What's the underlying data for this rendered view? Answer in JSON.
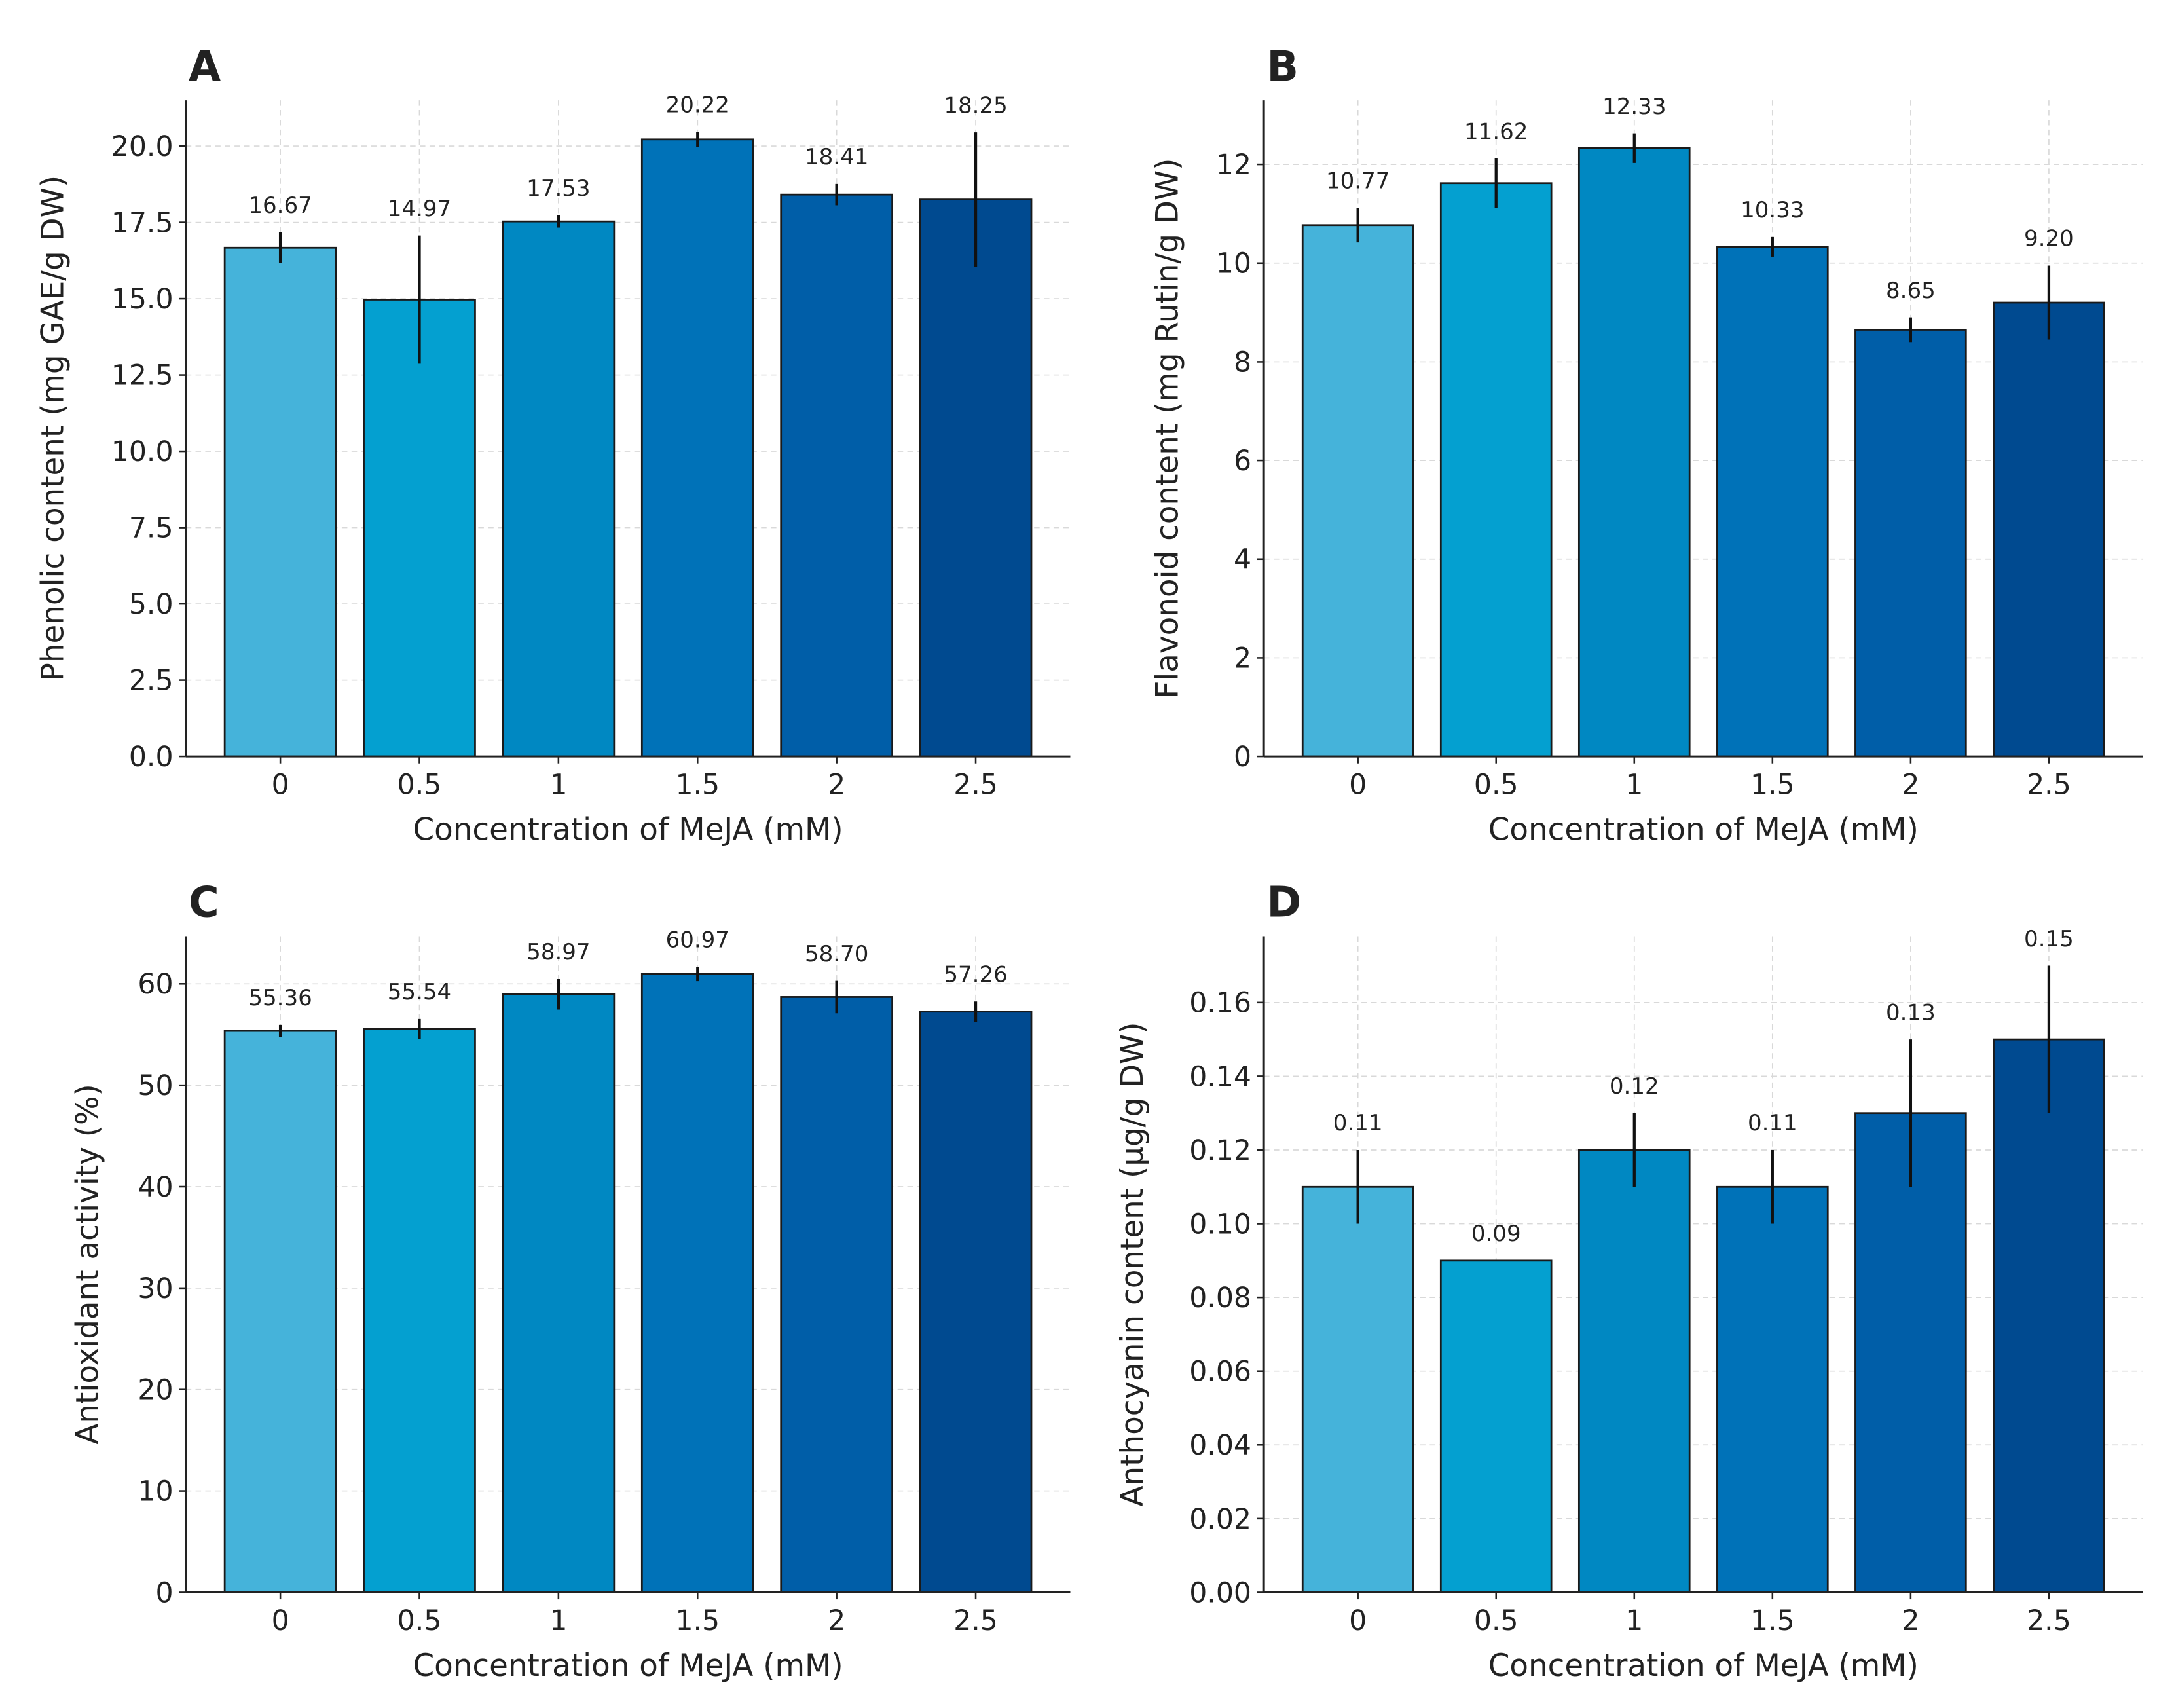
{
  "chart_data": [
    {
      "type": "bar",
      "panel": "A",
      "xlabel": "Concentration of MeJA (mM)",
      "ylabel": "Phenolic content (mg GAE/g DW)",
      "categories": [
        "0",
        "0.5",
        "1",
        "1.5",
        "2",
        "2.5"
      ],
      "values": [
        16.67,
        14.97,
        17.53,
        20.22,
        18.41,
        18.25
      ],
      "value_labels": [
        "16.67",
        "14.97",
        "17.53",
        "20.22",
        "18.41",
        "18.25"
      ],
      "errors": [
        0.5,
        2.1,
        0.2,
        0.25,
        0.35,
        2.2
      ],
      "colors": [
        "#45b3da",
        "#04a0d0",
        "#0088c2",
        "#0072b8",
        "#005ea8",
        "#004a90"
      ],
      "ylim": [
        0,
        21.5
      ],
      "yticks": [
        {
          "value": 0,
          "label": "0.0"
        },
        2.5,
        {
          "value": 5,
          "label": "5.0"
        },
        7.5,
        {
          "value": 10,
          "label": "10.0"
        },
        12.5,
        {
          "value": 15,
          "label": "15.0"
        },
        17.5,
        {
          "value": 20,
          "label": "20.0"
        }
      ],
      "grid": true
    },
    {
      "type": "bar",
      "panel": "B",
      "xlabel": "Concentration of MeJA (mM)",
      "ylabel": "Flavonoid content (mg Rutin/g DW)",
      "categories": [
        "0",
        "0.5",
        "1",
        "1.5",
        "2",
        "2.5"
      ],
      "values": [
        10.77,
        11.62,
        12.33,
        10.33,
        8.65,
        9.2
      ],
      "value_labels": [
        "10.77",
        "11.62",
        "12.33",
        "10.33",
        "8.65",
        "9.20"
      ],
      "errors": [
        0.35,
        0.5,
        0.3,
        0.2,
        0.25,
        0.75
      ],
      "colors": [
        "#45b3da",
        "#04a0d0",
        "#0088c2",
        "#0072b8",
        "#005ea8",
        "#004a90"
      ],
      "ylim": [
        0,
        13.3
      ],
      "yticks": [
        0,
        2,
        4,
        6,
        8,
        10,
        12
      ],
      "grid": true
    },
    {
      "type": "bar",
      "panel": "C",
      "xlabel": "Concentration of MeJA (mM)",
      "ylabel": "Antioxidant activity (%)",
      "categories": [
        "0",
        "0.5",
        "1",
        "1.5",
        "2",
        "2.5"
      ],
      "values": [
        55.36,
        55.54,
        58.97,
        60.97,
        58.7,
        57.26
      ],
      "value_labels": [
        "55.36",
        "55.54",
        "58.97",
        "60.97",
        "58.70",
        "57.26"
      ],
      "errors": [
        0.6,
        1.0,
        1.5,
        0.7,
        1.6,
        1.0
      ],
      "colors": [
        "#45b3da",
        "#04a0d0",
        "#0088c2",
        "#0072b8",
        "#005ea8",
        "#004a90"
      ],
      "ylim": [
        0,
        64.7
      ],
      "yticks": [
        0,
        10,
        20,
        30,
        40,
        50,
        60
      ],
      "grid": true
    },
    {
      "type": "bar",
      "panel": "D",
      "xlabel": "Concentration of MeJA (mM)",
      "ylabel": "Anthocyanin content (µg/g DW)",
      "categories": [
        "0",
        "0.5",
        "1",
        "1.5",
        "2",
        "2.5"
      ],
      "values": [
        0.11,
        0.09,
        0.12,
        0.11,
        0.13,
        0.15
      ],
      "value_labels": [
        "0.11",
        "0.09",
        "0.12",
        "0.11",
        "0.13",
        "0.15"
      ],
      "errors": [
        0.01,
        0,
        0.01,
        0.01,
        0.02,
        0.02
      ],
      "colors": [
        "#45b3da",
        "#04a0d0",
        "#0088c2",
        "#0072b8",
        "#005ea8",
        "#004a90"
      ],
      "ylim": [
        0,
        0.178
      ],
      "yticks": [
        {
          "value": 0,
          "label": "0.00"
        },
        {
          "value": 0.02,
          "label": "0.02"
        },
        {
          "value": 0.04,
          "label": "0.04"
        },
        {
          "value": 0.06,
          "label": "0.06"
        },
        {
          "value": 0.08,
          "label": "0.08"
        },
        {
          "value": 0.1,
          "label": "0.10"
        },
        {
          "value": 0.12,
          "label": "0.12"
        },
        {
          "value": 0.14,
          "label": "0.14"
        },
        {
          "value": 0.16,
          "label": "0.16"
        }
      ],
      "grid": true
    }
  ]
}
